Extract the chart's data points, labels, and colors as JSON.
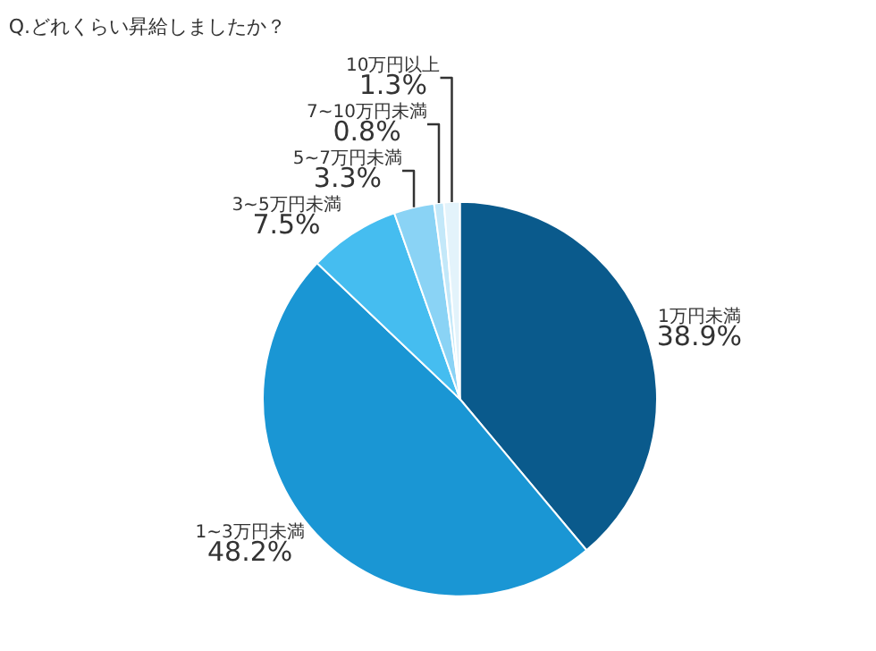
{
  "chart_data": {
    "type": "pie",
    "title": "Q.どれくらい昇給しましたか？",
    "categories": [
      "1万円未満",
      "1~3万円未満",
      "3~5万円未満",
      "5~7万円未満",
      "7~10万円未満",
      "10万円以上"
    ],
    "values": [
      38.9,
      48.2,
      7.5,
      3.3,
      0.8,
      1.3
    ],
    "value_labels": [
      "38.9%",
      "48.2%",
      "7.5%",
      "3.3%",
      "0.8%",
      "1.3%"
    ],
    "colors": [
      "#0a5a8c",
      "#1a96d4",
      "#45bdf0",
      "#8ad3f5",
      "#c3e8f9",
      "#e3f3fb"
    ],
    "legend": false
  }
}
